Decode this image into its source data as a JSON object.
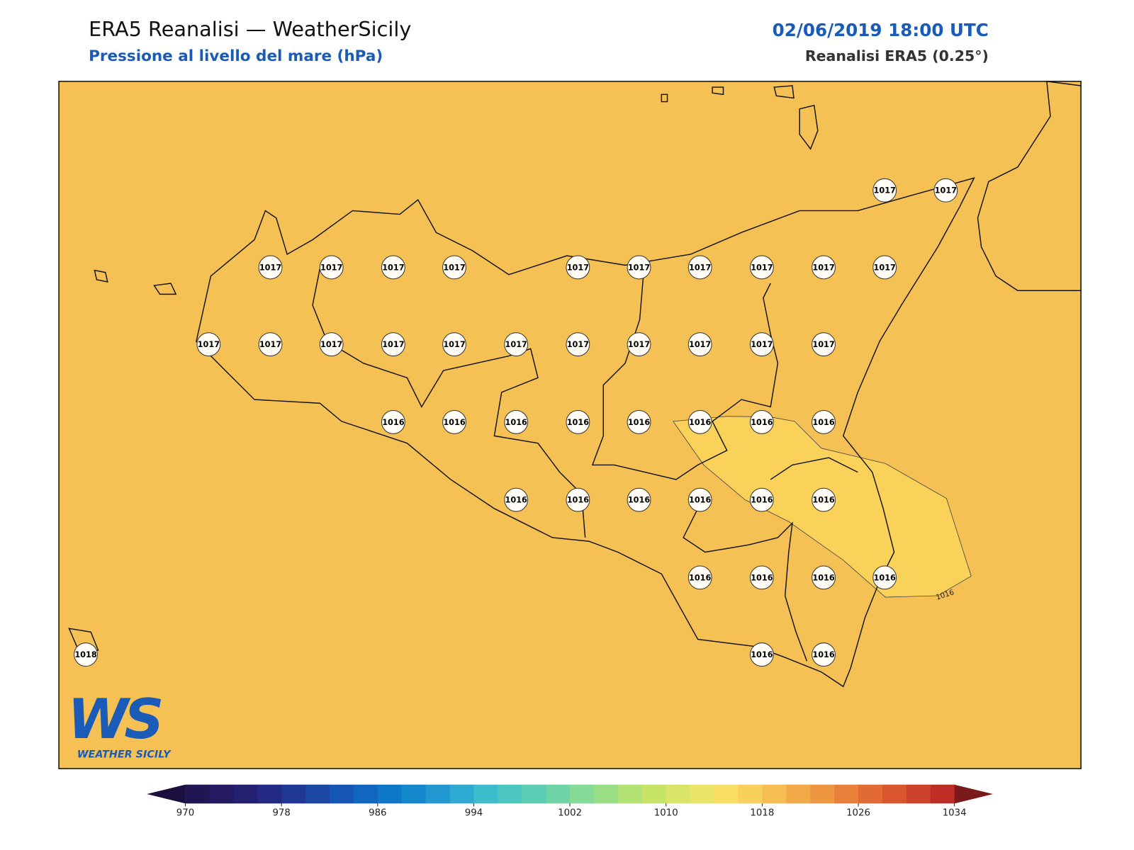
{
  "header": {
    "title": "ERA5 Reanalisi — WeatherSicily",
    "subtitle": "Pressione al livello del mare (hPa)",
    "date": "02/06/2019 18:00 UTC",
    "source": "Reanalisi ERA5 (0.25°)"
  },
  "map": {
    "background_color": "#f5c155",
    "contour_fill_color": "#fad25a",
    "contour_label": 1016,
    "points": [
      1017,
      1017,
      1017,
      1017,
      1017,
      1017,
      1017,
      1017,
      1017,
      1017,
      1017,
      1017,
      1017,
      1017,
      1017,
      1017,
      1017,
      1017,
      1017,
      1017,
      1017,
      1017,
      1017,
      1016,
      1016,
      1016,
      1016,
      1016,
      1016,
      1016,
      1016,
      1016,
      1016,
      1016,
      1016,
      1016,
      1016,
      1016,
      1016,
      1016,
      1016,
      1016,
      1016,
      1018
    ]
  },
  "colorbar": {
    "range": [
      970,
      1034
    ],
    "ticks": [
      970,
      978,
      986,
      994,
      1002,
      1010,
      1018,
      1026,
      1034
    ],
    "under_color": "#1a0f3d",
    "over_color": "#7a1a1a",
    "colors": [
      "#221652",
      "#231a62",
      "#232072",
      "#222a84",
      "#1e3894",
      "#1a48a4",
      "#1656b4",
      "#1066c0",
      "#0e78c8",
      "#1488cc",
      "#2298d0",
      "#2eaad2",
      "#3cbccc",
      "#4cc6c0",
      "#5ccdb4",
      "#6ed4a6",
      "#84da96",
      "#9ade86",
      "#b2e274",
      "#c8e468",
      "#dae466",
      "#ece466",
      "#f8de64",
      "#f8d05c",
      "#f6be52",
      "#f2aa48",
      "#ee9640",
      "#e8803a",
      "#e26a34",
      "#d8552e",
      "#cc422a",
      "#bc2e26"
    ]
  },
  "logo": {
    "mark": "WS",
    "name": "WEATHER SICILY"
  }
}
